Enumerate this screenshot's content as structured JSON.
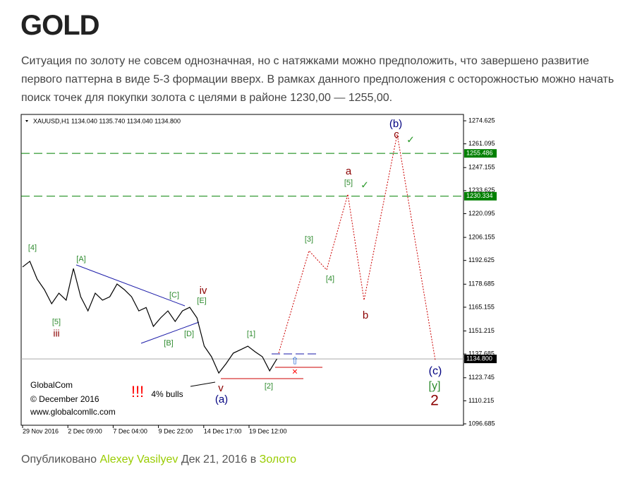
{
  "header": {
    "title": "GOLD"
  },
  "body": {
    "paragraph": "Ситуация по золоту не совсем однозначная, но с натяжками можно предположить, что завершено развитие первого паттерна в виде 5-3 формации вверх.  В рамках данного предположения с осторожностью можно начать поиск точек для покупки  золота с целями в районе 1230,00 — 1255,00."
  },
  "figure": {
    "type": "line",
    "caption": "XAUUSD,H1  1134.040 1135.740 1134.040 1134.800",
    "ylim": [
      1096.685,
      1274.625
    ],
    "yticks": [
      1274.625,
      1261.095,
      1247.155,
      1233.625,
      1220.095,
      1206.155,
      1192.625,
      1178.685,
      1165.155,
      1151.215,
      1137.685,
      1123.745,
      1110.215,
      1096.685
    ],
    "xticks": [
      "29 Nov 2016",
      "2 Dec 09:00",
      "7 Dec 04:00",
      "9 Dec 22:00",
      "14 Dec 17:00",
      "19 Dec 12:00"
    ],
    "price": {
      "color": "#000000",
      "values": [
        1188.8,
        1192.1,
        1181.7,
        1175.5,
        1167.2,
        1173.4,
        1169.3,
        1187.9,
        1171.3,
        1163.0,
        1173.4,
        1169.3,
        1171.3,
        1178.8,
        1175.5,
        1171.3,
        1163.0,
        1165.0,
        1153.9,
        1158.9,
        1163.0,
        1156.8,
        1163.0,
        1165.1,
        1158.9,
        1142.3,
        1136.1,
        1126.5,
        1132.0,
        1138.2,
        1140.2,
        1142.3,
        1139.0,
        1136.1,
        1127.8,
        1134.8
      ]
    },
    "forecast": {
      "color": "#cc0000",
      "values": [
        1138.2,
        1198.3,
        1187.1,
        1231.5,
        1169.3,
        1266.7,
        1134.0
      ]
    },
    "levels": [
      {
        "value": 1255.486,
        "label": "1255.486",
        "color": "#008000"
      },
      {
        "value": 1230.334,
        "label": "1230.334",
        "color": "#008000"
      },
      {
        "value": 1134.8,
        "label": "1134.800",
        "color": "#000000"
      }
    ],
    "annotations": [
      {
        "text": "[4]",
        "color": "#2e8b2e"
      },
      {
        "text": "[5]",
        "color": "#2e8b2e"
      },
      {
        "text": "iii",
        "color": "#8b0000"
      },
      {
        "text": "[A]",
        "color": "#2e8b2e"
      },
      {
        "text": "[B]",
        "color": "#2e8b2e"
      },
      {
        "text": "[C]",
        "color": "#2e8b2e"
      },
      {
        "text": "[D]",
        "color": "#2e8b2e"
      },
      {
        "text": "[E]",
        "color": "#2e8b2e"
      },
      {
        "text": "iv",
        "color": "#8b0000"
      },
      {
        "text": "v",
        "color": "#8b0000"
      },
      {
        "text": "(a)",
        "color": "#000080"
      },
      {
        "text": "[1]",
        "color": "#2e8b2e"
      },
      {
        "text": "[2]",
        "color": "#2e8b2e"
      },
      {
        "text": "[3]",
        "color": "#2e8b2e"
      },
      {
        "text": "[4]",
        "color": "#2e8b2e"
      },
      {
        "text": "[5]",
        "color": "#2e8b2e"
      },
      {
        "text": "a",
        "color": "#8b0000"
      },
      {
        "text": "b",
        "color": "#8b0000"
      },
      {
        "text": "c",
        "color": "#8b0000"
      },
      {
        "text": "(b)",
        "color": "#000080"
      },
      {
        "text": "(c)",
        "color": "#000080"
      },
      {
        "text": "[y]",
        "color": "#2e8b2e"
      },
      {
        "text": "2",
        "color": "#8b0000"
      },
      {
        "text": "✓",
        "color": "#2e9b2e"
      },
      {
        "text": "✓",
        "color": "#2e9b2e"
      },
      {
        "text": "×",
        "color": "#ff0000"
      },
      {
        "text": "!!!",
        "color": "#ff0000"
      },
      {
        "text": "4% bulls",
        "color": "#000000"
      },
      {
        "text": "GlobalCom",
        "color": "#000000"
      },
      {
        "text": "© December 2016",
        "color": "#000000"
      },
      {
        "text": "www.globalcomllc.com",
        "color": "#000000"
      },
      {
        "text": "⇧",
        "color": "#1f5fd0"
      }
    ]
  },
  "footer": {
    "prefix": "Опубликовано",
    "author": "Alexey Vasilyev",
    "date": "Дек 21, 2016 в",
    "category": "Золото"
  }
}
